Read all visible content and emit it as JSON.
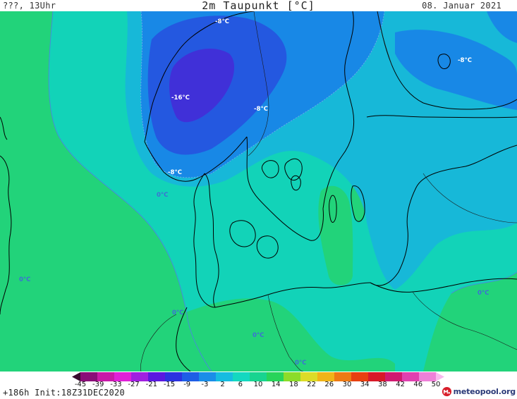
{
  "header": {
    "left": "???, 13Uhr",
    "title": "2m Taupunkt [°C]",
    "date": "08. Januar 2021"
  },
  "map": {
    "labels": [
      "-8°C",
      "-16°C",
      "-8°C",
      "-8°C",
      "-8°C",
      "0°C",
      "0°C",
      "0°C",
      "0°C",
      "0°C",
      "0°C"
    ],
    "colors": {
      "sea_base": "#12d3b8",
      "land_warm": "#22d37a",
      "cold_light": "#17b8d8",
      "cold_mid": "#1888e6",
      "cold_deep": "#2458e0",
      "cold_core": "#4030d8",
      "coast": "#000000"
    }
  },
  "legend": {
    "ticks": [
      "-45",
      "-39",
      "-33",
      "-27",
      "-21",
      "-15",
      "-9",
      "-3",
      "2",
      "6",
      "10",
      "14",
      "18",
      "22",
      "26",
      "30",
      "34",
      "38",
      "42",
      "46",
      "50"
    ],
    "colors": [
      "#3a0a2e",
      "#8a0e78",
      "#c81aa8",
      "#e020d8",
      "#a020e0",
      "#5a18e0",
      "#2b33e0",
      "#1e5ee6",
      "#1a8ee8",
      "#16bce0",
      "#14d8c0",
      "#18d490",
      "#28d45a",
      "#8cdc2a",
      "#dcdc28",
      "#f0b418",
      "#ee7a14",
      "#e84010",
      "#d81a28",
      "#d01a70",
      "#e040b0",
      "#ee80d8",
      "#f8b8ee"
    ]
  },
  "footer": {
    "init": "+186h Init:18Z31DEC2020",
    "brand": "meteopool.org"
  }
}
